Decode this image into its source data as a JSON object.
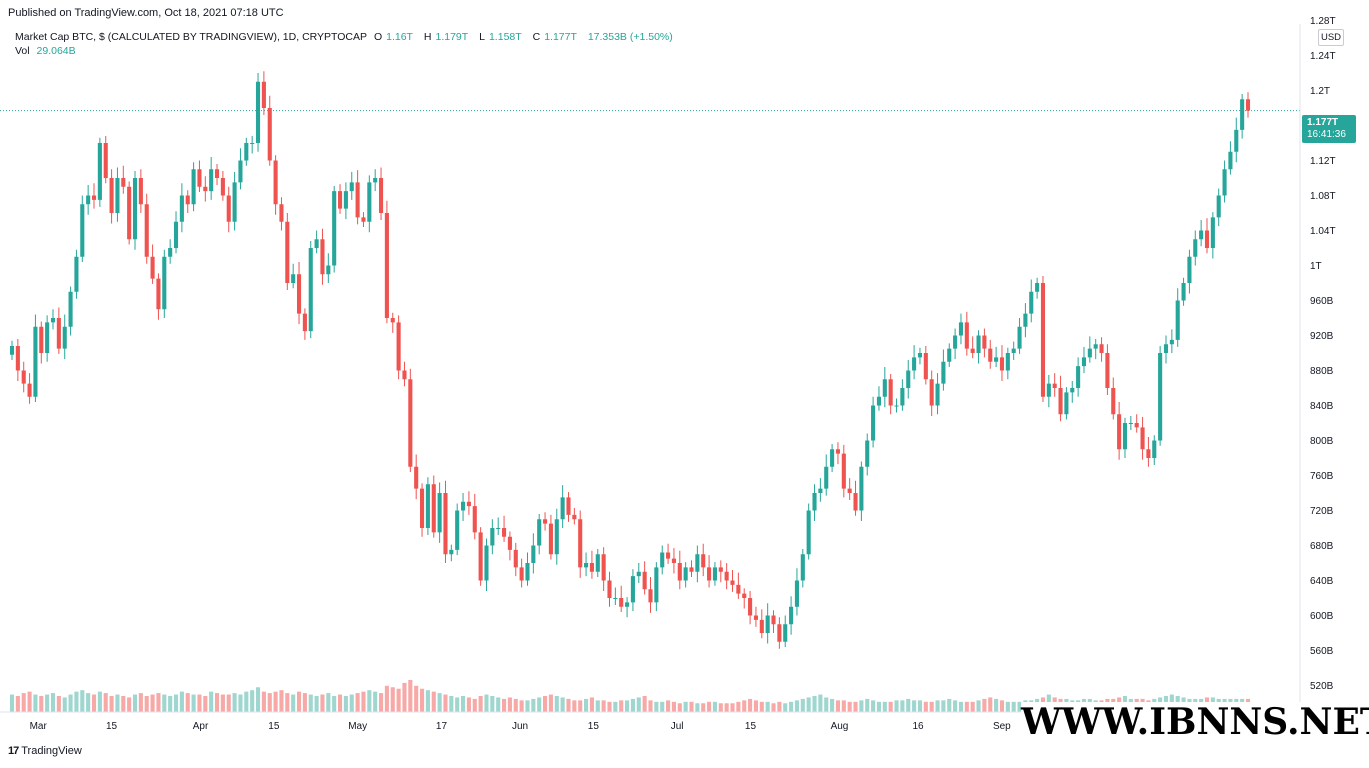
{
  "header": {
    "published": "Published on TradingView.com, Oct 18, 2021 07:18 UTC"
  },
  "legend": {
    "symbol": "Market Cap BTC, $ (CALCULATED BY TRADINGVIEW), 1D, CRYPTOCAP",
    "o_label": "O",
    "o_value": "1.16T",
    "h_label": "H",
    "h_value": "1.179T",
    "l_label": "L",
    "l_value": "1.158T",
    "c_label": "C",
    "c_value": "1.177T",
    "change": "17.353B (+1.50%)",
    "vol_label": "Vol",
    "vol_value": "29.064B"
  },
  "axis": {
    "currency": "USD",
    "last_price": "1.177T",
    "countdown": "16:41:36"
  },
  "footer": {
    "logo_mark": "17",
    "logo_text": "TradingView"
  },
  "watermark": "WWW.IBNNS.NET",
  "colors": {
    "up": "#26a69a",
    "down": "#ef5350",
    "vol_up": "#9fd6cf",
    "vol_down": "#f6a9a7",
    "last_price_line": "#26a69a"
  },
  "chart_data": {
    "type": "candlestick",
    "x_start": "2021-02-24",
    "x_end": "2021-10-18",
    "ylim": [
      500,
      1280
    ],
    "y_unit": "B",
    "y_ticks": [
      {
        "value": 520,
        "label": "520B"
      },
      {
        "value": 560,
        "label": "560B"
      },
      {
        "value": 600,
        "label": "600B"
      },
      {
        "value": 640,
        "label": "640B"
      },
      {
        "value": 680,
        "label": "680B"
      },
      {
        "value": 720,
        "label": "720B"
      },
      {
        "value": 760,
        "label": "760B"
      },
      {
        "value": 800,
        "label": "800B"
      },
      {
        "value": 840,
        "label": "840B"
      },
      {
        "value": 880,
        "label": "880B"
      },
      {
        "value": 920,
        "label": "920B"
      },
      {
        "value": 960,
        "label": "960B"
      },
      {
        "value": 1000,
        "label": "1T"
      },
      {
        "value": 1040,
        "label": "1.04T"
      },
      {
        "value": 1080,
        "label": "1.08T"
      },
      {
        "value": 1120,
        "label": "1.12T"
      },
      {
        "value": 1200,
        "label": "1.2T"
      },
      {
        "value": 1240,
        "label": "1.24T"
      },
      {
        "value": 1280,
        "label": "1.28T"
      }
    ],
    "x_ticks": [
      {
        "date": "2021-03-01",
        "label": "Mar"
      },
      {
        "date": "2021-03-15",
        "label": "15"
      },
      {
        "date": "2021-04-01",
        "label": "Apr"
      },
      {
        "date": "2021-04-15",
        "label": "15"
      },
      {
        "date": "2021-05-01",
        "label": "May"
      },
      {
        "date": "2021-05-17",
        "label": "17"
      },
      {
        "date": "2021-06-01",
        "label": "Jun"
      },
      {
        "date": "2021-06-15",
        "label": "15"
      },
      {
        "date": "2021-07-01",
        "label": "Jul"
      },
      {
        "date": "2021-07-15",
        "label": "15"
      },
      {
        "date": "2021-08-01",
        "label": "Aug"
      },
      {
        "date": "2021-08-16",
        "label": "16"
      },
      {
        "date": "2021-09-01",
        "label": "Sep"
      }
    ],
    "last_close": 1177,
    "closes": [
      908,
      880,
      865,
      850,
      930,
      900,
      935,
      940,
      905,
      930,
      970,
      1010,
      1070,
      1080,
      1075,
      1140,
      1100,
      1060,
      1100,
      1090,
      1030,
      1100,
      1070,
      1010,
      985,
      950,
      1010,
      1020,
      1050,
      1080,
      1070,
      1110,
      1090,
      1085,
      1110,
      1100,
      1080,
      1050,
      1095,
      1120,
      1140,
      1140,
      1210,
      1180,
      1120,
      1070,
      1050,
      980,
      990,
      945,
      925,
      1020,
      1030,
      990,
      1000,
      1085,
      1065,
      1085,
      1095,
      1055,
      1050,
      1095,
      1100,
      1060,
      940,
      935,
      880,
      870,
      770,
      745,
      700,
      750,
      695,
      740,
      670,
      675,
      720,
      730,
      725,
      695,
      640,
      680,
      700,
      700,
      690,
      675,
      655,
      640,
      660,
      680,
      710,
      705,
      670,
      710,
      735,
      715,
      710,
      655,
      660,
      650,
      670,
      640,
      620,
      620,
      610,
      615,
      645,
      650,
      630,
      615,
      655,
      672,
      665,
      660,
      640,
      655,
      650,
      670,
      655,
      640,
      655,
      650,
      640,
      635,
      625,
      620,
      600,
      595,
      580,
      600,
      590,
      570,
      590,
      610,
      640,
      670,
      720,
      740,
      745,
      770,
      790,
      785,
      745,
      740,
      720,
      770,
      800,
      840,
      850,
      870,
      840,
      840,
      860,
      880,
      895,
      900,
      870,
      840,
      865,
      890,
      905,
      920,
      935,
      905,
      900,
      920,
      905,
      890,
      895,
      880,
      900,
      905,
      930,
      945,
      970,
      980,
      850,
      865,
      860,
      830,
      855,
      860,
      885,
      895,
      905,
      910,
      900,
      860,
      830,
      790,
      820,
      820,
      815,
      790,
      780,
      800,
      900,
      910,
      915,
      960,
      980,
      1010,
      1030,
      1040,
      1020,
      1055,
      1080,
      1110,
      1130,
      1155,
      1190,
      1177
    ],
    "volumes": [
      12,
      11,
      13,
      14,
      12,
      11,
      12,
      13,
      11,
      10,
      12,
      14,
      15,
      13,
      12,
      14,
      13,
      11,
      12,
      11,
      10,
      12,
      13,
      11,
      12,
      13,
      12,
      11,
      12,
      14,
      13,
      12,
      12,
      11,
      14,
      13,
      12,
      12,
      13,
      12,
      14,
      15,
      17,
      14,
      13,
      14,
      15,
      13,
      12,
      14,
      13,
      12,
      11,
      12,
      13,
      11,
      12,
      11,
      12,
      13,
      14,
      15,
      14,
      13,
      18,
      17,
      16,
      20,
      22,
      18,
      16,
      15,
      14,
      13,
      12,
      11,
      10,
      11,
      10,
      9,
      11,
      12,
      11,
      10,
      9,
      10,
      9,
      8,
      8,
      9,
      10,
      11,
      12,
      11,
      10,
      9,
      8,
      8,
      9,
      10,
      8,
      8,
      7,
      7,
      8,
      8,
      9,
      10,
      11,
      8,
      7,
      7,
      8,
      7,
      6,
      7,
      7,
      6,
      6,
      7,
      7,
      6,
      6,
      6,
      7,
      8,
      9,
      8,
      7,
      7,
      6,
      7,
      6,
      7,
      8,
      9,
      10,
      11,
      12,
      10,
      9,
      8,
      8,
      7,
      7,
      8,
      9,
      8,
      7,
      7,
      7,
      8,
      8,
      9,
      8,
      8,
      7,
      7,
      8,
      8,
      9,
      8,
      7,
      7,
      7,
      8,
      9,
      10,
      9,
      8,
      7,
      7,
      7,
      8,
      8,
      9,
      10,
      12,
      10,
      9,
      9,
      8,
      8,
      9,
      9,
      8,
      8,
      9,
      9,
      10,
      11,
      9,
      9,
      9,
      8,
      9,
      10,
      11,
      12,
      11,
      10,
      9,
      9,
      9,
      10,
      10,
      9,
      9,
      9,
      9,
      9,
      9,
      9,
      9,
      9
    ]
  }
}
